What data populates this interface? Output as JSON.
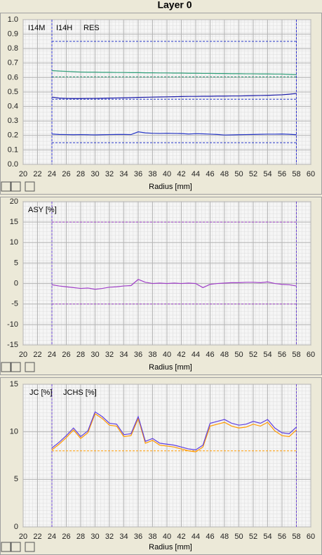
{
  "title": "Layer 0",
  "chart_data": [
    {
      "type": "line",
      "x_label": "Radius [mm]",
      "x": [
        24,
        25,
        26,
        27,
        28,
        29,
        30,
        31,
        32,
        33,
        34,
        35,
        36,
        37,
        38,
        39,
        40,
        41,
        42,
        43,
        44,
        45,
        46,
        47,
        48,
        49,
        50,
        51,
        52,
        53,
        54,
        55,
        56,
        57,
        58
      ],
      "series": [
        {
          "name": "I14M",
          "color": "#2e9e78",
          "values": [
            0.648,
            0.645,
            0.643,
            0.64,
            0.638,
            0.637,
            0.637,
            0.636,
            0.636,
            0.635,
            0.635,
            0.634,
            0.634,
            0.633,
            0.633,
            0.632,
            0.632,
            0.631,
            0.631,
            0.63,
            0.63,
            0.629,
            0.629,
            0.628,
            0.628,
            0.627,
            0.627,
            0.626,
            0.626,
            0.625,
            0.625,
            0.624,
            0.624,
            0.622,
            0.62
          ]
        },
        {
          "name": "I14H",
          "color": "#1a1aa8",
          "values": [
            0.465,
            0.458,
            0.456,
            0.455,
            0.455,
            0.456,
            0.456,
            0.457,
            0.458,
            0.459,
            0.46,
            0.461,
            0.463,
            0.464,
            0.465,
            0.466,
            0.467,
            0.468,
            0.469,
            0.47,
            0.47,
            0.471,
            0.471,
            0.472,
            0.472,
            0.473,
            0.473,
            0.474,
            0.475,
            0.476,
            0.477,
            0.479,
            0.481,
            0.485,
            0.49
          ]
        },
        {
          "name": "RES",
          "color": "#2838c8",
          "values": [
            0.21,
            0.207,
            0.206,
            0.205,
            0.206,
            0.205,
            0.204,
            0.205,
            0.206,
            0.207,
            0.207,
            0.206,
            0.225,
            0.218,
            0.215,
            0.214,
            0.215,
            0.214,
            0.213,
            0.21,
            0.212,
            0.211,
            0.209,
            0.207,
            0.203,
            0.204,
            0.205,
            0.206,
            0.207,
            0.208,
            0.209,
            0.209,
            0.21,
            0.208,
            0.205
          ]
        }
      ],
      "reference_lines": [
        {
          "value": 0.85,
          "color": "#2838c8"
        },
        {
          "value": 0.605,
          "color": "#2e9e78"
        },
        {
          "value": 0.45,
          "color": "#2838c8"
        },
        {
          "value": 0.15,
          "color": "#2838c8"
        }
      ],
      "x_markers": [
        24,
        58
      ],
      "marker_color": "#3030d0",
      "xlim": [
        20,
        60
      ],
      "xticks": [
        20,
        22,
        24,
        26,
        28,
        30,
        32,
        34,
        36,
        38,
        40,
        42,
        44,
        46,
        48,
        50,
        52,
        54,
        56,
        58,
        60
      ],
      "ylim": [
        0,
        1
      ],
      "yticks": [
        {
          "value": 0,
          "label": "0.0"
        },
        0.1,
        0.2,
        0.3,
        0.4,
        0.5,
        0.6,
        0.7,
        0.8,
        0.9,
        {
          "value": 1,
          "label": "1.0"
        }
      ],
      "grid": true
    },
    {
      "type": "line",
      "x_label": "Radius [mm]",
      "x": [
        24,
        25,
        26,
        27,
        28,
        29,
        30,
        31,
        32,
        33,
        34,
        35,
        36,
        37,
        38,
        39,
        40,
        41,
        42,
        43,
        44,
        45,
        46,
        47,
        48,
        49,
        50,
        51,
        52,
        53,
        54,
        55,
        56,
        57,
        58
      ],
      "series": [
        {
          "name": "ASY [%]",
          "color": "#a040c8",
          "values": [
            -0.3,
            -0.6,
            -0.8,
            -1.0,
            -1.2,
            -1.1,
            -1.4,
            -1.2,
            -0.9,
            -0.8,
            -0.6,
            -0.5,
            1.0,
            0.3,
            0.0,
            0.1,
            0.0,
            0.1,
            0.0,
            0.1,
            0.0,
            -1.0,
            -0.2,
            0.0,
            0.1,
            0.2,
            0.2,
            0.3,
            0.3,
            0.2,
            0.4,
            0.0,
            -0.2,
            -0.3,
            -0.6
          ]
        }
      ],
      "reference_lines": [
        {
          "value": 15,
          "color": "#a040c8"
        },
        {
          "value": -5,
          "color": "#a040c8"
        }
      ],
      "x_markers": [
        24,
        58
      ],
      "marker_color": "#6a40d0",
      "xlim": [
        20,
        60
      ],
      "xticks": [
        20,
        22,
        24,
        26,
        28,
        30,
        32,
        34,
        36,
        38,
        40,
        42,
        44,
        46,
        48,
        50,
        52,
        54,
        56,
        58,
        60
      ],
      "ylim": [
        -15,
        20
      ],
      "yticks": [
        -15,
        -10,
        -5,
        0,
        5,
        10,
        15,
        20
      ],
      "grid": true
    },
    {
      "type": "line",
      "x_label": "Radius [mm]",
      "x": [
        24,
        25,
        26,
        27,
        28,
        29,
        30,
        31,
        32,
        33,
        34,
        35,
        36,
        37,
        38,
        39,
        40,
        41,
        42,
        43,
        44,
        45,
        46,
        47,
        48,
        49,
        50,
        51,
        52,
        53,
        54,
        55,
        56,
        57,
        58
      ],
      "series": [
        {
          "name": "JC [%]",
          "color": "#ff9a00",
          "values": [
            8.1,
            8.7,
            9.4,
            10.2,
            9.3,
            9.9,
            11.9,
            11.4,
            10.7,
            10.6,
            9.5,
            9.6,
            11.4,
            8.8,
            9.1,
            8.6,
            8.5,
            8.4,
            8.2,
            8.0,
            7.9,
            8.4,
            10.6,
            10.8,
            11.0,
            10.6,
            10.4,
            10.5,
            10.8,
            10.6,
            11.0,
            10.1,
            9.6,
            9.5,
            10.2
          ]
        },
        {
          "name": "JCHS [%]",
          "color": "#6040e0",
          "values": [
            8.3,
            8.9,
            9.6,
            10.4,
            9.5,
            10.1,
            12.1,
            11.6,
            10.9,
            10.8,
            9.7,
            9.8,
            11.6,
            9.0,
            9.3,
            8.8,
            8.7,
            8.6,
            8.4,
            8.2,
            8.1,
            8.6,
            10.9,
            11.1,
            11.3,
            10.9,
            10.7,
            10.8,
            11.1,
            10.9,
            11.3,
            10.4,
            9.9,
            9.8,
            10.5
          ]
        }
      ],
      "reference_lines": [
        {
          "value": 8,
          "color": "#ff9a00"
        }
      ],
      "x_markers": [
        24,
        58
      ],
      "marker_color": "#6a40d0",
      "xlim": [
        20,
        60
      ],
      "xticks": [
        20,
        22,
        24,
        26,
        28,
        30,
        32,
        34,
        36,
        38,
        40,
        42,
        44,
        46,
        48,
        50,
        52,
        54,
        56,
        58,
        60
      ],
      "ylim": [
        0,
        15
      ],
      "yticks": [
        0,
        5,
        10,
        15
      ],
      "grid": true
    }
  ]
}
